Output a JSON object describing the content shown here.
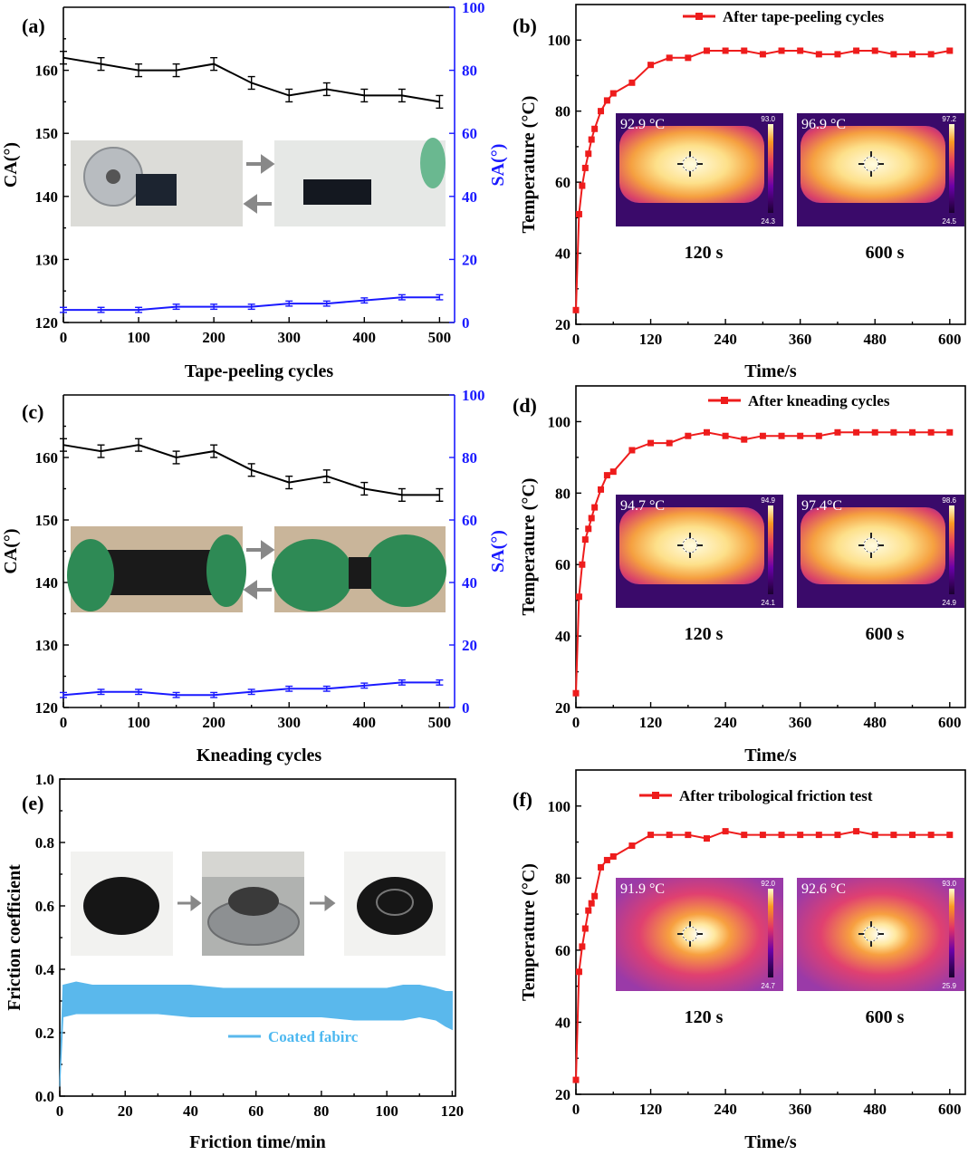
{
  "chart_data": [
    {
      "id": "a",
      "type": "line",
      "panel_label": "(a)",
      "xlabel": "Tape-peeling cycles",
      "ylabel": "CA(°)",
      "y2label": "SA(°)",
      "xlim": [
        0,
        520
      ],
      "ylim": [
        120,
        170
      ],
      "y2lim": [
        0,
        100
      ],
      "xticks": [
        0,
        100,
        200,
        300,
        400,
        500
      ],
      "yticks": [
        120,
        130,
        140,
        150,
        160
      ],
      "y2ticks": [
        0,
        20,
        40,
        60,
        80,
        100
      ],
      "series": [
        {
          "name": "CA",
          "axis": "left",
          "color": "#000000",
          "x": [
            0,
            50,
            100,
            150,
            200,
            250,
            300,
            350,
            400,
            450,
            500
          ],
          "y": [
            162,
            161,
            160,
            160,
            161,
            158,
            156,
            157,
            156,
            156,
            155
          ],
          "err": 1
        },
        {
          "name": "SA",
          "axis": "right",
          "color": "#1a1aff",
          "x": [
            0,
            50,
            100,
            150,
            200,
            250,
            300,
            350,
            400,
            450,
            500
          ],
          "y": [
            4,
            4,
            4,
            5,
            5,
            5,
            6,
            6,
            7,
            8,
            8
          ],
          "err": 0.8
        }
      ],
      "inset": {
        "kind": "photo",
        "labels": [
          "steel roller with coated fabric",
          "coated fabric strip"
        ]
      }
    },
    {
      "id": "c",
      "type": "line",
      "panel_label": "(c)",
      "xlabel": "Kneading cycles",
      "ylabel": "CA(°)",
      "y2label": "SA(°)",
      "xlim": [
        0,
        520
      ],
      "ylim": [
        120,
        170
      ],
      "y2lim": [
        0,
        100
      ],
      "xticks": [
        0,
        100,
        200,
        300,
        400,
        500
      ],
      "yticks": [
        120,
        130,
        140,
        150,
        160
      ],
      "y2ticks": [
        0,
        20,
        40,
        60,
        80,
        100
      ],
      "series": [
        {
          "name": "CA",
          "axis": "left",
          "color": "#000000",
          "x": [
            0,
            50,
            100,
            150,
            200,
            250,
            300,
            350,
            400,
            450,
            500
          ],
          "y": [
            162,
            161,
            162,
            160,
            161,
            158,
            156,
            157,
            155,
            154,
            154
          ],
          "err": 1
        },
        {
          "name": "SA",
          "axis": "right",
          "color": "#1a1aff",
          "x": [
            0,
            50,
            100,
            150,
            200,
            250,
            300,
            350,
            400,
            450,
            500
          ],
          "y": [
            4,
            5,
            5,
            4,
            4,
            5,
            6,
            6,
            7,
            8,
            8
          ],
          "err": 0.8
        }
      ],
      "inset": {
        "kind": "photo",
        "labels": [
          "fabric held flat",
          "fabric kneaded"
        ]
      }
    },
    {
      "id": "b",
      "type": "line",
      "panel_label": "(b)",
      "xlabel": "Time/s",
      "ylabel": "Temperature (°C)",
      "legend": "After tape-peeling cycles",
      "xlim": [
        0,
        625
      ],
      "ylim": [
        20,
        110
      ],
      "xticks": [
        0,
        120,
        240,
        360,
        480,
        600
      ],
      "yticks": [
        20,
        40,
        60,
        80,
        100
      ],
      "series": [
        {
          "name": "After tape-peeling cycles",
          "color": "#ee1c1c",
          "x": [
            0,
            5,
            10,
            15,
            20,
            25,
            30,
            40,
            50,
            60,
            90,
            120,
            150,
            180,
            210,
            240,
            270,
            300,
            330,
            360,
            390,
            420,
            450,
            480,
            510,
            540,
            570,
            600
          ],
          "y": [
            24,
            51,
            59,
            64,
            68,
            72,
            75,
            80,
            83,
            85,
            88,
            93,
            95,
            95,
            97,
            97,
            97,
            96,
            97,
            97,
            96,
            96,
            97,
            97,
            96,
            96,
            96,
            97
          ]
        }
      ],
      "ir": [
        {
          "temp": "92.9 °C",
          "max": "93.0",
          "min": "24.3",
          "time": "120 s",
          "shape": "rect"
        },
        {
          "temp": "96.9 °C",
          "max": "97.2",
          "min": "24.5",
          "time": "600 s",
          "shape": "rect"
        }
      ]
    },
    {
      "id": "d",
      "type": "line",
      "panel_label": "(d)",
      "xlabel": "Time/s",
      "ylabel": "Temperature (°C)",
      "legend": "After kneading cycles",
      "xlim": [
        0,
        625
      ],
      "ylim": [
        20,
        110
      ],
      "xticks": [
        0,
        120,
        240,
        360,
        480,
        600
      ],
      "yticks": [
        20,
        40,
        60,
        80,
        100
      ],
      "series": [
        {
          "name": "After kneading cycles",
          "color": "#ee1c1c",
          "x": [
            0,
            5,
            10,
            15,
            20,
            25,
            30,
            40,
            50,
            60,
            90,
            120,
            150,
            180,
            210,
            240,
            270,
            300,
            330,
            360,
            390,
            420,
            450,
            480,
            510,
            540,
            570,
            600
          ],
          "y": [
            24,
            51,
            60,
            67,
            70,
            73,
            76,
            81,
            85,
            86,
            92,
            94,
            94,
            96,
            97,
            96,
            95,
            96,
            96,
            96,
            96,
            97,
            97,
            97,
            97,
            97,
            97,
            97
          ]
        }
      ],
      "ir": [
        {
          "temp": "94.7 °C",
          "max": "94.9",
          "min": "24.1",
          "time": "120 s",
          "shape": "rect"
        },
        {
          "temp": "97.4°C",
          "max": "98.6",
          "min": "24.9",
          "time": "600 s",
          "shape": "rect"
        }
      ]
    },
    {
      "id": "e",
      "type": "area",
      "panel_label": "(e)",
      "xlabel": "Friction time/min",
      "ylabel": "Friction coefficient",
      "legend": "Coated fabirc",
      "xlim": [
        0,
        121
      ],
      "ylim": [
        0,
        1.0
      ],
      "xticks": [
        0,
        20,
        40,
        60,
        80,
        100,
        120
      ],
      "yticks": [
        0.0,
        0.2,
        0.4,
        0.6,
        0.8,
        1.0
      ],
      "series": [
        {
          "name": "Coated fabirc",
          "color": "#5ab8ec",
          "x": [
            0,
            1,
            5,
            10,
            20,
            30,
            40,
            50,
            60,
            70,
            80,
            90,
            100,
            105,
            110,
            115,
            118,
            120
          ],
          "lower": [
            0.03,
            0.25,
            0.26,
            0.26,
            0.26,
            0.26,
            0.25,
            0.25,
            0.25,
            0.25,
            0.25,
            0.24,
            0.24,
            0.24,
            0.25,
            0.24,
            0.22,
            0.21
          ],
          "upper": [
            0.05,
            0.35,
            0.36,
            0.35,
            0.35,
            0.35,
            0.35,
            0.34,
            0.34,
            0.34,
            0.34,
            0.34,
            0.34,
            0.35,
            0.35,
            0.34,
            0.33,
            0.33
          ]
        }
      ],
      "inset": {
        "kind": "photo",
        "labels": [
          "coated fabric disc",
          "tribometer",
          "worn fabric disc"
        ]
      }
    },
    {
      "id": "f",
      "type": "line",
      "panel_label": "(f)",
      "xlabel": "Time/s",
      "ylabel": "Temperature (°C)",
      "legend": "After tribological friction test",
      "xlim": [
        0,
        625
      ],
      "ylim": [
        20,
        110
      ],
      "xticks": [
        0,
        120,
        240,
        360,
        480,
        600
      ],
      "yticks": [
        20,
        40,
        60,
        80,
        100
      ],
      "series": [
        {
          "name": "After tribological friction test",
          "color": "#ee1c1c",
          "x": [
            0,
            5,
            10,
            15,
            20,
            25,
            30,
            40,
            50,
            60,
            90,
            120,
            150,
            180,
            210,
            240,
            270,
            300,
            330,
            360,
            390,
            420,
            450,
            480,
            510,
            540,
            570,
            600
          ],
          "y": [
            24,
            54,
            61,
            66,
            71,
            73,
            75,
            83,
            85,
            86,
            89,
            92,
            92,
            92,
            91,
            93,
            92,
            92,
            92,
            92,
            92,
            92,
            93,
            92,
            92,
            92,
            92,
            92
          ]
        }
      ],
      "ir": [
        {
          "temp": "91.9 °C",
          "max": "92.0",
          "min": "24.7",
          "time": "120 s",
          "shape": "spot"
        },
        {
          "temp": "92.6 °C",
          "max": "93.0",
          "min": "25.9",
          "time": "600 s",
          "shape": "spot"
        }
      ]
    }
  ]
}
